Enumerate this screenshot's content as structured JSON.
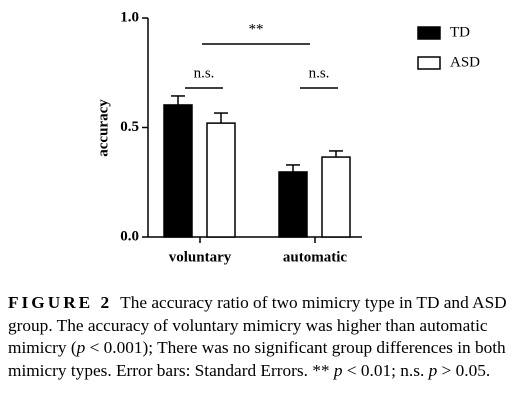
{
  "chart_data": {
    "type": "bar",
    "y_label": "accuracy",
    "categories": [
      "voluntary",
      "automatic"
    ],
    "series": [
      {
        "name": "TD",
        "color": "#000000",
        "values": [
          0.603,
          0.297
        ],
        "errors": [
          0.041,
          0.032
        ]
      },
      {
        "name": "ASD",
        "color": "#ffffff",
        "values": [
          0.52,
          0.365
        ],
        "errors": [
          0.046,
          0.028
        ]
      }
    ],
    "ylim": [
      0,
      1
    ],
    "yticks": [
      {
        "value": 0,
        "label": "0.0"
      },
      0.5,
      {
        "value": 1,
        "label": "1.0"
      }
    ],
    "annotations": [
      "**",
      "n.s.",
      "n.s."
    ],
    "legend": "upper right"
  },
  "caption": {
    "label": "FIGURE 2",
    "parts": [
      {
        "text": "The accuracy ratio of two mimicry type in TD and ASD group. The accuracy of voluntary mimicry was higher than automatic mimicry ("
      },
      {
        "text": "p",
        "italic": true
      },
      {
        "text": " < 0.001); There was no significant group differences in both mimicry types. Error bars: Standard Errors. ** "
      },
      {
        "text": "p",
        "italic": true
      },
      {
        "text": " < 0.01; n.s. "
      },
      {
        "text": "p",
        "italic": true
      },
      {
        "text": " > 0.05."
      }
    ]
  }
}
